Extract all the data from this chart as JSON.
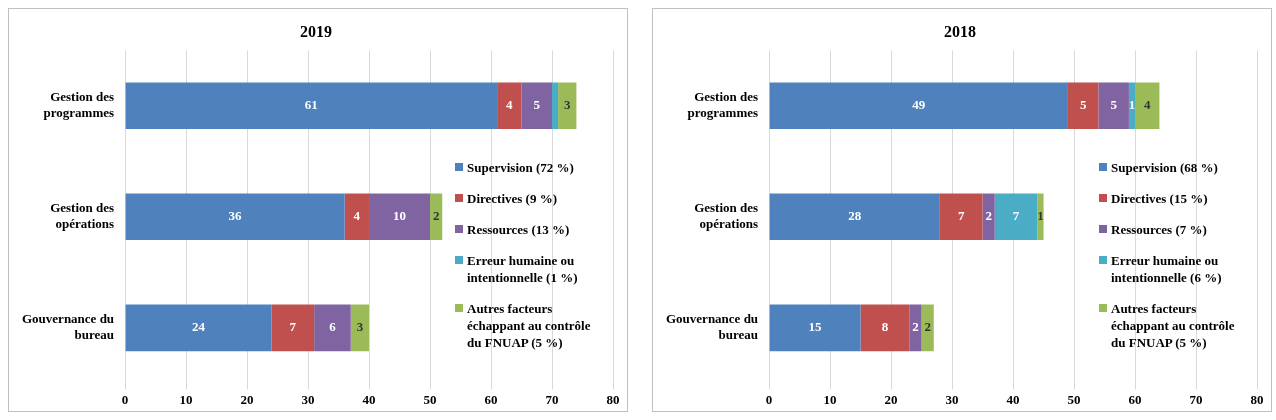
{
  "chart_data": [
    {
      "type": "bar",
      "title": "2019",
      "orientation": "horizontal",
      "stacked": true,
      "categories": [
        "Gestion des programmes",
        "Gestion des opérations",
        "Gouvernance du bureau"
      ],
      "xlim": [
        0,
        80
      ],
      "xticks": [
        0,
        10,
        20,
        30,
        40,
        50,
        60,
        70,
        80
      ],
      "grid": "x",
      "legend": "right",
      "series": [
        {
          "name": "Supervision (72 %)",
          "color": "#4f81bd",
          "values": [
            61,
            36,
            24
          ],
          "value_labels": [
            "61",
            "36",
            "24"
          ]
        },
        {
          "name": "Directives (9 %)",
          "color": "#c0504d",
          "values": [
            4,
            4,
            7
          ],
          "value_labels": [
            "4",
            "4",
            "7"
          ]
        },
        {
          "name": "Ressources (13 %)",
          "color": "#8064a2",
          "values": [
            5,
            10,
            6
          ],
          "value_labels": [
            "5",
            "10",
            "6"
          ]
        },
        {
          "name": "Erreur humaine ou intentionnelle (1 %)",
          "color": "#4bacc6",
          "values": [
            1,
            0,
            0
          ],
          "value_labels": [
            null,
            null,
            null
          ]
        },
        {
          "name": "Autres facteurs échappant au contrôle du FNUAP (5 %)",
          "color": "#9bbb59",
          "values": [
            3,
            2,
            3
          ],
          "value_labels": [
            "3",
            "2",
            "3"
          ]
        }
      ]
    },
    {
      "type": "bar",
      "title": "2018",
      "orientation": "horizontal",
      "stacked": true,
      "categories": [
        "Gestion des programmes",
        "Gestion des opérations",
        "Gouvernance du bureau"
      ],
      "xlim": [
        0,
        80
      ],
      "xticks": [
        0,
        10,
        20,
        30,
        40,
        50,
        60,
        70,
        80
      ],
      "grid": "x",
      "legend": "right",
      "series": [
        {
          "name": "Supervision (68 %)",
          "color": "#4f81bd",
          "values": [
            49,
            28,
            15
          ],
          "value_labels": [
            "49",
            "28",
            "15"
          ]
        },
        {
          "name": "Directives (15 %)",
          "color": "#c0504d",
          "values": [
            5,
            7,
            8
          ],
          "value_labels": [
            "5",
            "7",
            "8"
          ]
        },
        {
          "name": "Ressources (7 %)",
          "color": "#8064a2",
          "values": [
            5,
            2,
            2
          ],
          "value_labels": [
            "5",
            "2",
            "2"
          ]
        },
        {
          "name": "Erreur humaine ou intentionnelle (6 %)",
          "color": "#4bacc6",
          "values": [
            1,
            7,
            0
          ],
          "value_labels": [
            "1",
            "7",
            null
          ]
        },
        {
          "name": "Autres facteurs échappant au contrôle du FNUAP (5 %)",
          "color": "#9bbb59",
          "values": [
            4,
            1,
            2
          ],
          "value_labels": [
            "4",
            "1",
            "2"
          ]
        }
      ]
    }
  ]
}
